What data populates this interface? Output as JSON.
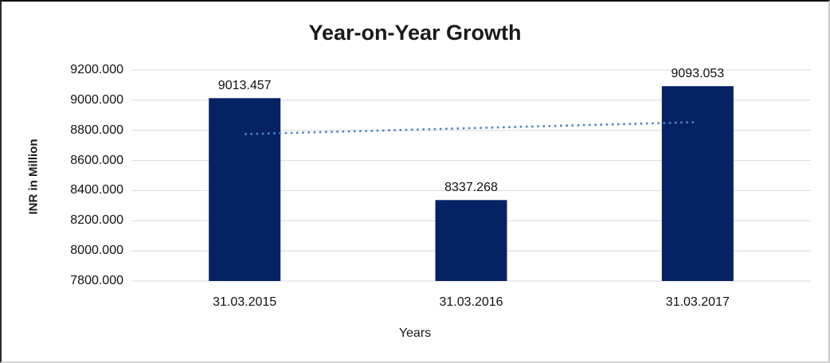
{
  "chart_data": {
    "type": "bar",
    "title": "Year-on-Year Growth",
    "xlabel": "Years",
    "ylabel": "INR in Million",
    "categories": [
      "31.03.2015",
      "31.03.2016",
      "31.03.2017"
    ],
    "values": [
      9013.457,
      8337.268,
      9093.053
    ],
    "data_labels": [
      "9013.457",
      "8337.268",
      "9093.053"
    ],
    "ylim": [
      7800,
      9200
    ],
    "ytick_step": 200,
    "ytick_labels": [
      "9200.000",
      "9000.000",
      "8800.000",
      "8600.000",
      "8400.000",
      "8200.000",
      "8000.000",
      "7800.000"
    ],
    "grid": true,
    "legend_position": "none",
    "trendline": {
      "name": "linear-trendline",
      "style": "dotted",
      "start_value": 8774.8,
      "end_value": 8854.4
    },
    "colors": {
      "bar": "#052264",
      "trendline": "#4e86c6",
      "gridline": "#d9d9d9",
      "text": "#1a1a1a",
      "background": "#ffffff"
    }
  }
}
